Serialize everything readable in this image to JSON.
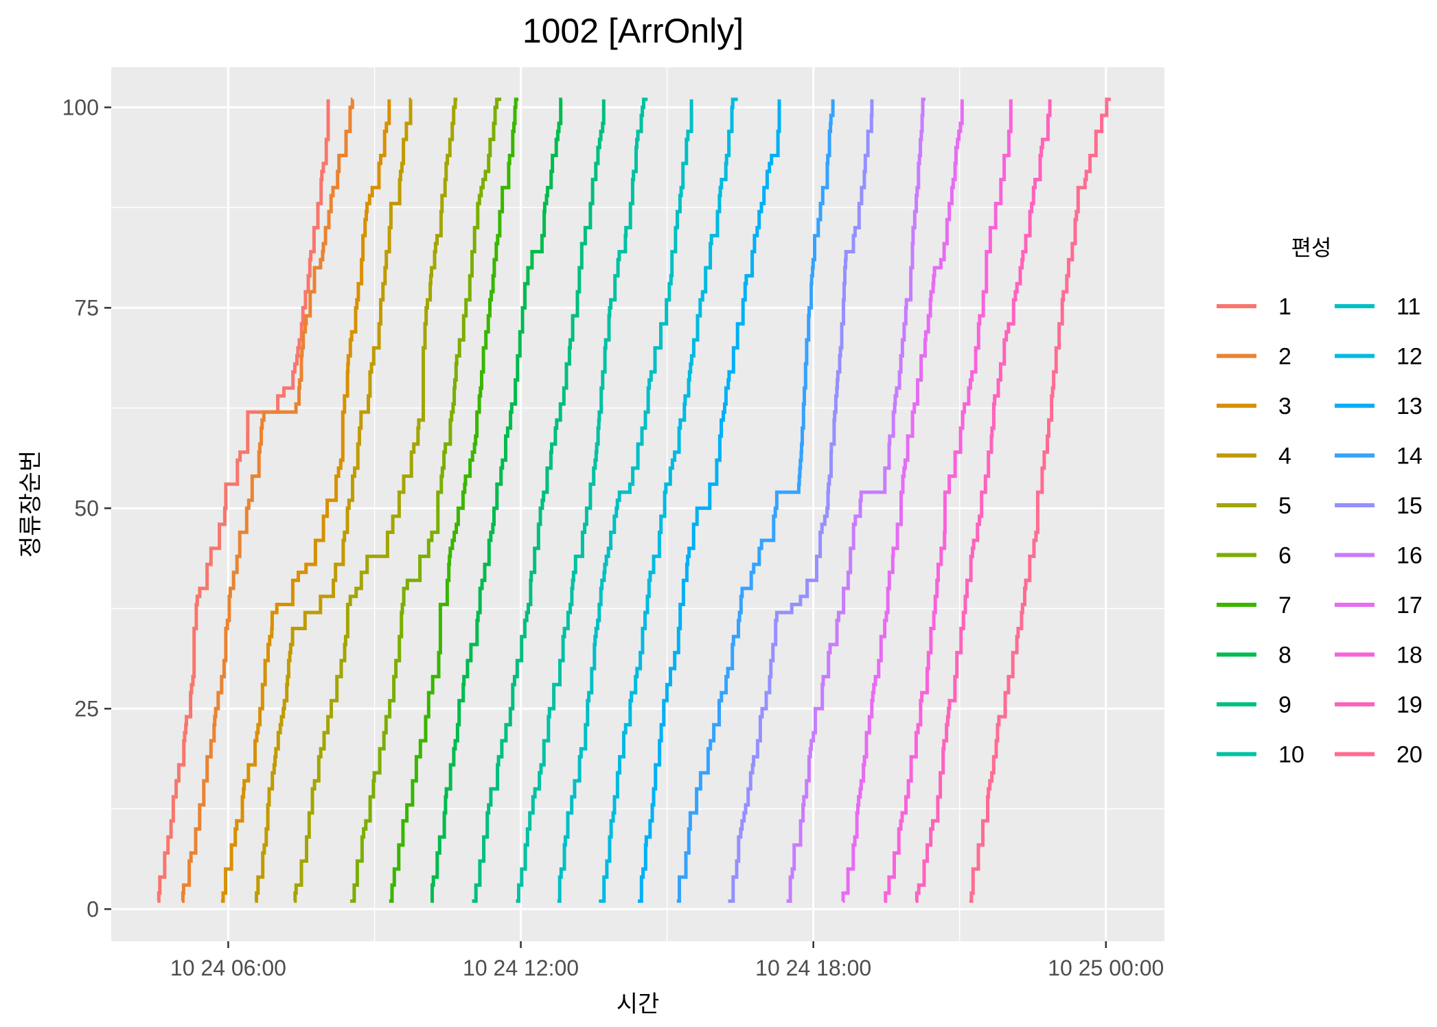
{
  "chart_data": {
    "type": "line",
    "subtype": "step",
    "title": "1002 [ArrOnly]",
    "xlabel": "시간",
    "ylabel": "정류장순번",
    "x_unit": "hours since 10 24 00:00",
    "xlim": [
      3.6,
      25.2
    ],
    "ylim": [
      -4,
      105
    ],
    "x_ticks": [
      {
        "value": 6,
        "label": "10 24 06:00"
      },
      {
        "value": 12,
        "label": "10 24 12:00"
      },
      {
        "value": 18,
        "label": "10 24 18:00"
      },
      {
        "value": 24,
        "label": "10 25 00:00"
      }
    ],
    "y_ticks": [
      {
        "value": 0,
        "label": "0"
      },
      {
        "value": 25,
        "label": "25"
      },
      {
        "value": 50,
        "label": "50"
      },
      {
        "value": 75,
        "label": "75"
      },
      {
        "value": 100,
        "label": "100"
      }
    ],
    "grid": true,
    "background": "#ebebeb",
    "legend": {
      "title": "편성",
      "position": "right",
      "columns": 2
    },
    "series": [
      {
        "name": "1",
        "color": "#F8766D",
        "points": [
          [
            4.55,
            1
          ],
          [
            5.3,
            35
          ],
          [
            5.95,
            53
          ],
          [
            6.4,
            62
          ],
          [
            6.85,
            62
          ],
          [
            7.4,
            68
          ],
          [
            8.05,
            101
          ]
        ]
      },
      {
        "name": "2",
        "color": "#EA8331",
        "points": [
          [
            5.05,
            1
          ],
          [
            5.95,
            35
          ],
          [
            6.75,
            62
          ],
          [
            7.35,
            62
          ],
          [
            7.85,
            80
          ],
          [
            8.55,
            101
          ]
        ]
      },
      {
        "name": "3",
        "color": "#D89000",
        "points": [
          [
            5.85,
            1
          ],
          [
            6.9,
            37
          ],
          [
            7.6,
            43
          ],
          [
            8.35,
            62
          ],
          [
            8.85,
            88
          ],
          [
            9.3,
            101
          ]
        ]
      },
      {
        "name": "4",
        "color": "#C09B00",
        "points": [
          [
            6.55,
            1
          ],
          [
            7.4,
            35
          ],
          [
            8.2,
            43
          ],
          [
            8.85,
            62
          ],
          [
            9.45,
            88
          ],
          [
            9.75,
            101
          ]
        ]
      },
      {
        "name": "5",
        "color": "#A3A500",
        "points": [
          [
            7.35,
            1
          ],
          [
            8.45,
            38
          ],
          [
            9.1,
            44
          ],
          [
            10.0,
            70
          ],
          [
            10.7,
            101
          ]
        ]
      },
      {
        "name": "6",
        "color": "#7CAE00",
        "points": [
          [
            8.5,
            1
          ],
          [
            9.6,
            40
          ],
          [
            10.3,
            52
          ],
          [
            11.0,
            82
          ],
          [
            11.6,
            101
          ]
        ]
      },
      {
        "name": "7",
        "color": "#39B600",
        "points": [
          [
            9.3,
            1
          ],
          [
            10.35,
            38
          ],
          [
            11.1,
            62
          ],
          [
            11.7,
            90
          ],
          [
            11.95,
            101
          ]
        ]
      },
      {
        "name": "8",
        "color": "#00BB4E",
        "points": [
          [
            10.15,
            1
          ],
          [
            11.45,
            50
          ],
          [
            12.35,
            82
          ],
          [
            12.85,
            101
          ]
        ]
      },
      {
        "name": "9",
        "color": "#00BF7D",
        "points": [
          [
            11.0,
            1
          ],
          [
            12.4,
            50
          ],
          [
            13.2,
            80
          ],
          [
            13.7,
            101
          ]
        ]
      },
      {
        "name": "10",
        "color": "#00C1A3",
        "points": [
          [
            11.9,
            1
          ],
          [
            13.35,
            50
          ],
          [
            14.1,
            82
          ],
          [
            14.6,
            101
          ]
        ]
      },
      {
        "name": "11",
        "color": "#00BFC4",
        "points": [
          [
            12.75,
            1
          ],
          [
            14.2,
            52
          ],
          [
            15.1,
            82
          ],
          [
            15.5,
            101
          ]
        ]
      },
      {
        "name": "12",
        "color": "#00BAE0",
        "points": [
          [
            13.6,
            1
          ],
          [
            14.95,
            52
          ],
          [
            15.95,
            84
          ],
          [
            16.45,
            101
          ]
        ]
      },
      {
        "name": "13",
        "color": "#00B0F6",
        "points": [
          [
            14.4,
            1
          ],
          [
            15.75,
            50
          ],
          [
            16.8,
            84
          ],
          [
            17.3,
            101
          ]
        ]
      },
      {
        "name": "14",
        "color": "#35A2FF",
        "points": [
          [
            15.2,
            1
          ],
          [
            16.6,
            40
          ],
          [
            17.25,
            52
          ],
          [
            17.7,
            53
          ],
          [
            18.05,
            84
          ],
          [
            18.4,
            101
          ]
        ]
      },
      {
        "name": "15",
        "color": "#9590FF",
        "points": [
          [
            16.25,
            1
          ],
          [
            17.25,
            37
          ],
          [
            17.7,
            38
          ],
          [
            18.3,
            52
          ],
          [
            18.75,
            82
          ],
          [
            19.2,
            101
          ]
        ]
      },
      {
        "name": "16",
        "color": "#C77CFF",
        "points": [
          [
            17.45,
            1
          ],
          [
            18.55,
            37
          ],
          [
            19.05,
            52
          ],
          [
            19.4,
            52
          ],
          [
            20.0,
            80
          ],
          [
            20.3,
            101
          ]
        ]
      },
      {
        "name": "17",
        "color": "#E76BF3",
        "points": [
          [
            18.6,
            1
          ],
          [
            19.8,
            52
          ],
          [
            20.6,
            80
          ],
          [
            21.05,
            101
          ]
        ]
      },
      {
        "name": "18",
        "color": "#FA62DB",
        "points": [
          [
            19.45,
            1
          ],
          [
            20.7,
            52
          ],
          [
            21.55,
            82
          ],
          [
            22.05,
            101
          ]
        ]
      },
      {
        "name": "19",
        "color": "#FF62BC",
        "points": [
          [
            20.1,
            1
          ],
          [
            21.45,
            52
          ],
          [
            22.3,
            82
          ],
          [
            22.85,
            101
          ]
        ]
      },
      {
        "name": "20",
        "color": "#FF6C91",
        "points": [
          [
            21.2,
            1
          ],
          [
            22.6,
            52
          ],
          [
            23.5,
            90
          ],
          [
            24.1,
            101
          ]
        ]
      }
    ]
  }
}
